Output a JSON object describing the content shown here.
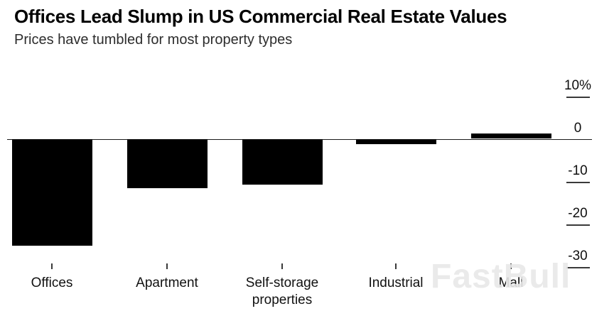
{
  "header": {
    "title": "Offices Lead Slump in US Commercial Real Estate Values",
    "subtitle": "Prices have tumbled for most property types"
  },
  "watermark": {
    "text": "FastBull",
    "color": "#e8e8e8"
  },
  "chart_data": {
    "type": "bar",
    "title": "Offices Lead Slump in US Commercial Real Estate Values",
    "subtitle": "Prices have tumbled for most property types",
    "categories": [
      "Offices",
      "Apartment",
      "Self-storage properties",
      "Industrial",
      "Mall"
    ],
    "values": [
      -25,
      -11.6,
      -10.7,
      -1.2,
      1.3
    ],
    "unit": "%",
    "xlabel": "",
    "ylabel": "",
    "ylim": [
      -33,
      13
    ],
    "yticks": [
      {
        "label": "10%",
        "value": 10
      },
      {
        "label": "0",
        "value": 0
      },
      {
        "label": "-10",
        "value": -10
      },
      {
        "label": "-20",
        "value": -20
      },
      {
        "label": "-30",
        "value": -30
      }
    ],
    "grid": false,
    "legend": false,
    "axis_side": "right",
    "bar_color": "#000000",
    "axis_color": "#3a3a3a",
    "baseline_color": "#1a1a1a",
    "background_color": "#ffffff"
  }
}
